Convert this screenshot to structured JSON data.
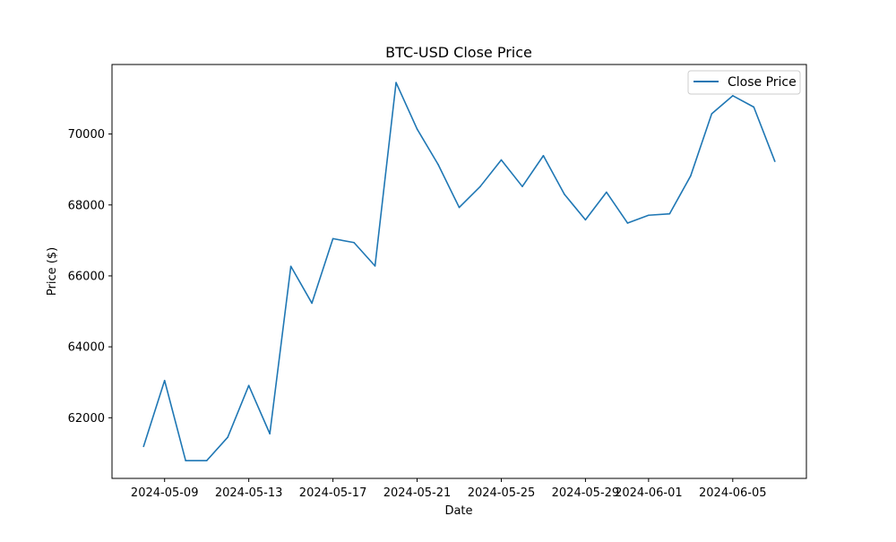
{
  "chart_data": {
    "type": "line",
    "title": "BTC-USD Close Price",
    "xlabel": "Date",
    "ylabel": "Price ($)",
    "x": [
      "2024-05-08",
      "2024-05-09",
      "2024-05-10",
      "2024-05-11",
      "2024-05-12",
      "2024-05-13",
      "2024-05-14",
      "2024-05-15",
      "2024-05-16",
      "2024-05-17",
      "2024-05-18",
      "2024-05-19",
      "2024-05-20",
      "2024-05-21",
      "2024-05-22",
      "2024-05-23",
      "2024-05-24",
      "2024-05-25",
      "2024-05-26",
      "2024-05-27",
      "2024-05-28",
      "2024-05-29",
      "2024-05-30",
      "2024-05-31",
      "2024-06-01",
      "2024-06-02",
      "2024-06-03",
      "2024-06-04",
      "2024-06-05",
      "2024-06-06",
      "2024-06-07"
    ],
    "series": [
      {
        "name": "Close Price",
        "color": "#1f77b4",
        "values": [
          61190,
          63050,
          60790,
          60790,
          61450,
          62910,
          61550,
          66270,
          65230,
          67050,
          66940,
          66280,
          71450,
          70140,
          69140,
          67930,
          68520,
          69270,
          68520,
          69390,
          68300,
          67580,
          68360,
          67490,
          67710,
          67750,
          68820,
          70570,
          71080,
          70760,
          69230
        ]
      }
    ],
    "ylim": [
      60290,
      71960
    ],
    "yticks": [
      62000,
      64000,
      66000,
      68000,
      70000
    ],
    "ytick_labels": [
      "62000",
      "64000",
      "66000",
      "68000",
      "70000"
    ],
    "xlim": [
      "2024-05-06 12:00",
      "2024-06-08 12:00"
    ],
    "xticks": [
      "2024-05-09",
      "2024-05-13",
      "2024-05-17",
      "2024-05-21",
      "2024-05-25",
      "2024-05-29",
      "2024-06-01",
      "2024-06-05"
    ],
    "xtick_labels": [
      "2024-05-09",
      "2024-05-13",
      "2024-05-17",
      "2024-05-21",
      "2024-05-25",
      "2024-05-29",
      "2024-06-01",
      "2024-06-05"
    ],
    "grid": false,
    "legend_position": "top-right"
  }
}
